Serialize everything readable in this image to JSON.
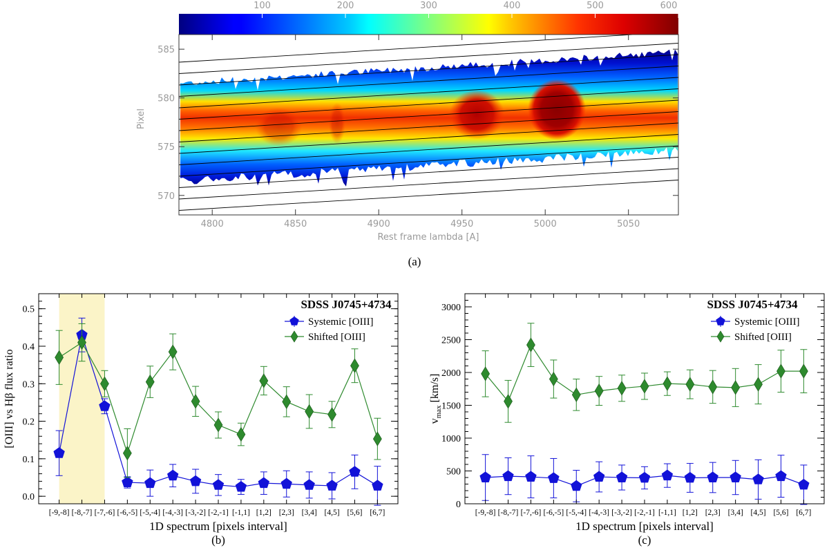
{
  "chart_data": [
    {
      "panel": "a",
      "type": "heatmap",
      "caption": "(a)",
      "xlabel": "Rest frame lambda [A]",
      "ylabel": "Pixel",
      "xlim": [
        4780,
        5080
      ],
      "ylim": [
        568,
        586.5
      ],
      "x_ticks": [
        4800,
        4850,
        4900,
        4950,
        5000,
        5050
      ],
      "y_ticks": [
        570,
        575,
        580,
        585
      ],
      "colorbar": {
        "range": [
          0,
          600
        ],
        "ticks": [
          100,
          200,
          300,
          400,
          500,
          600
        ],
        "colormap": "jet",
        "placement": "top"
      },
      "emission_peaks_A": [
        4840,
        4875,
        4959,
        5007
      ],
      "slit_lines": 14
    },
    {
      "panel": "b",
      "type": "line",
      "caption": "(b)",
      "title": "SDSS J0745+4734",
      "xlabel": "1D spectrum [pixels interval]",
      "ylabel": "[OIII] vs Hβ flux ratio",
      "categories": [
        "[-9,-8]",
        "[-8,-7]",
        "[-7,-6]",
        "[-6,-5]",
        "[-5,-4]",
        "[-4,-3]",
        "[-3,-2]",
        "[-2,-1]",
        "[-1,1]",
        "[1,2]",
        "[2,3]",
        "[3,4]",
        "[4,5]",
        "[5,6]",
        "[6,7]"
      ],
      "ylim": [
        -0.02,
        0.54
      ],
      "y_ticks": [
        0.0,
        0.1,
        0.2,
        0.3,
        0.4,
        0.5
      ],
      "highlight": {
        "from": "[-9,-8]",
        "to": "[-7,-6]",
        "color": "#fbf4c8"
      },
      "legend": "top-right",
      "series": [
        {
          "name": "Systemic [OIII]",
          "color": "#1212d8",
          "marker": "pentagon",
          "values": [
            0.115,
            0.43,
            0.24,
            0.037,
            0.035,
            0.055,
            0.04,
            0.03,
            0.025,
            0.035,
            0.033,
            0.03,
            0.028,
            0.065,
            0.028
          ],
          "errors": [
            0.06,
            0.045,
            0.02,
            0.015,
            0.035,
            0.03,
            0.032,
            0.028,
            0.02,
            0.03,
            0.035,
            0.035,
            0.035,
            0.045,
            0.052
          ]
        },
        {
          "name": "Shifted [OIII]",
          "color": "#2e8a2e",
          "marker": "diamond",
          "values": [
            0.37,
            0.41,
            0.3,
            0.115,
            0.305,
            0.385,
            0.253,
            0.19,
            0.165,
            0.308,
            0.252,
            0.226,
            0.218,
            0.348,
            0.153
          ],
          "errors": [
            0.072,
            0.05,
            0.035,
            0.065,
            0.042,
            0.048,
            0.04,
            0.035,
            0.03,
            0.038,
            0.04,
            0.045,
            0.035,
            0.045,
            0.055
          ]
        }
      ]
    },
    {
      "panel": "c",
      "type": "line",
      "caption": "(c)",
      "title": "SDSS J0745+4734",
      "xlabel": "1D spectrum [pixels interval]",
      "ylabel": "v_max [km/s]",
      "ylabel_main": "v",
      "ylabel_sub": "max",
      "ylabel_rest": " [km/s]",
      "categories": [
        "[-9,-8]",
        "[-8,-7]",
        "[-7,-6]",
        "[-6,-5]",
        "[-5,-4]",
        "[-4,-3]",
        "[-3,-2]",
        "[-2,-1]",
        "[-1,1]",
        "[1,2]",
        "[2,3]",
        "[3,4]",
        "[4,5]",
        "[5,6]",
        "[6,7]"
      ],
      "ylim": [
        0,
        3200
      ],
      "y_ticks": [
        0,
        500,
        1000,
        1500,
        2000,
        2500,
        3000
      ],
      "legend": "top-right",
      "series": [
        {
          "name": "Systemic [OIII]",
          "color": "#1212d8",
          "marker": "pentagon",
          "values": [
            400,
            420,
            410,
            390,
            270,
            410,
            400,
            395,
            430,
            395,
            400,
            400,
            370,
            420,
            290
          ],
          "errors": [
            350,
            280,
            320,
            300,
            240,
            230,
            190,
            170,
            180,
            220,
            230,
            260,
            300,
            320,
            300
          ]
        },
        {
          "name": "Shifted [OIII]",
          "color": "#2e8a2e",
          "marker": "diamond",
          "values": [
            1980,
            1560,
            2420,
            1900,
            1660,
            1720,
            1760,
            1790,
            1830,
            1820,
            1780,
            1770,
            1820,
            2020,
            2020
          ],
          "errors": [
            350,
            320,
            330,
            290,
            240,
            220,
            200,
            200,
            180,
            220,
            250,
            290,
            300,
            320,
            330
          ]
        }
      ]
    }
  ]
}
